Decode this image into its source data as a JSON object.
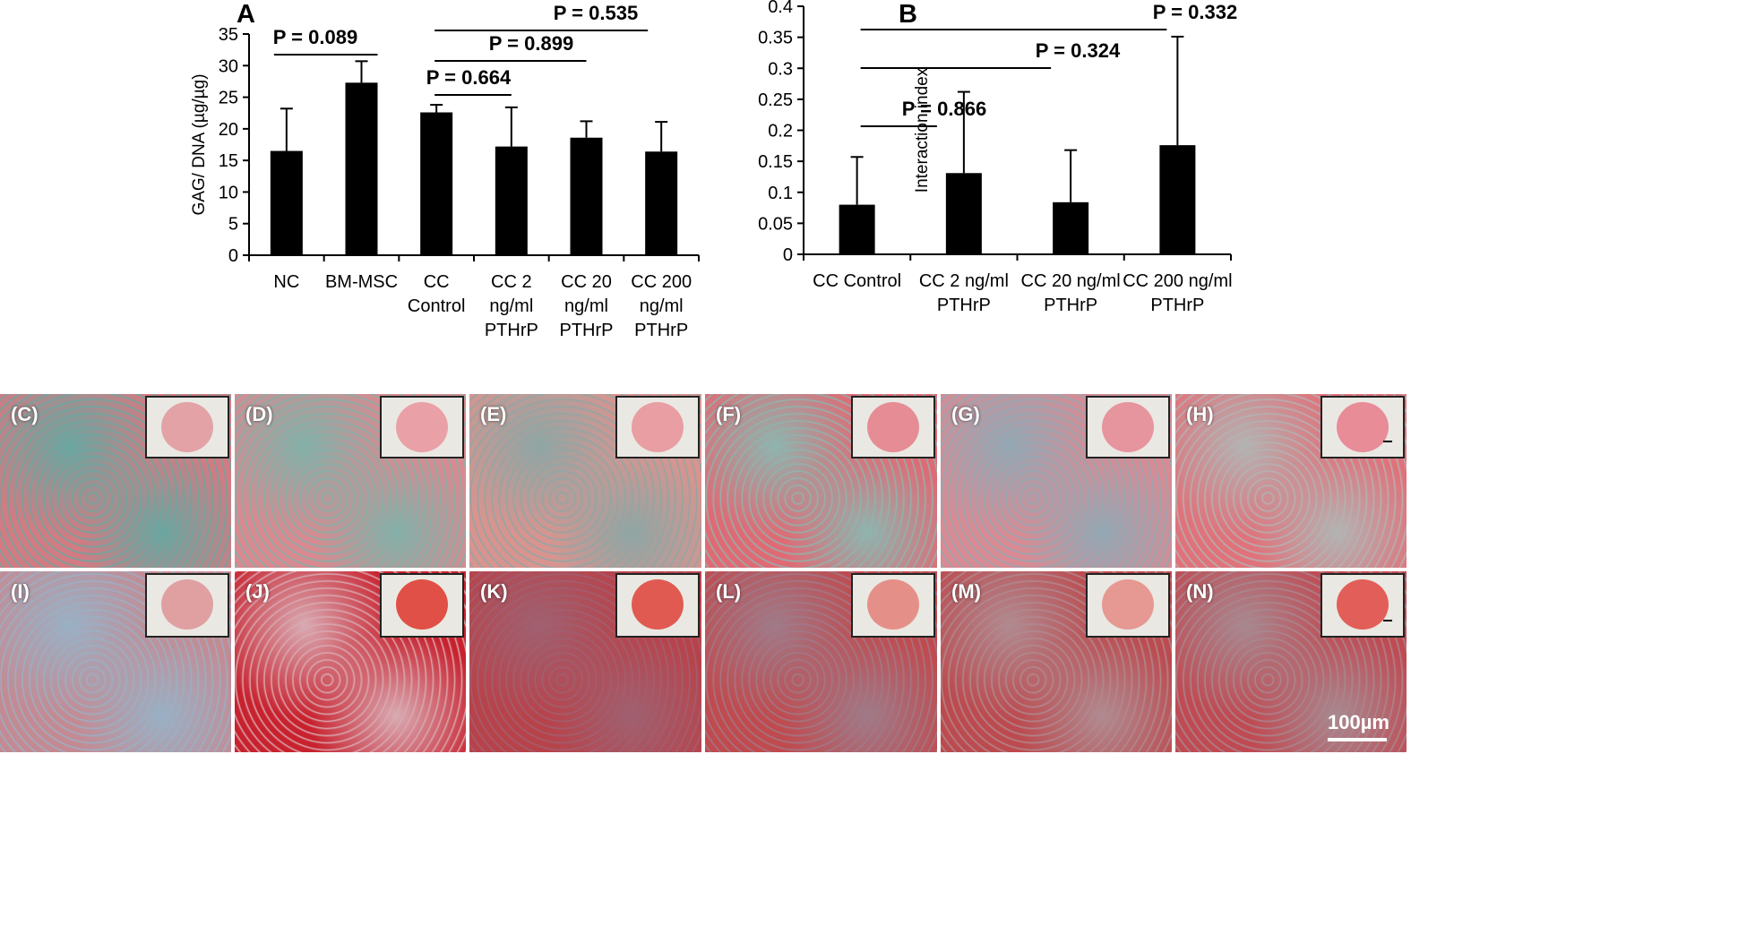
{
  "chart_data": [
    {
      "panel": "A",
      "type": "bar",
      "ylabel": "GAG/ DNA (µg/µg)",
      "ylim": [
        0,
        35
      ],
      "yticks": [
        "0",
        "5",
        "10",
        "15",
        "20",
        "25",
        "30",
        "35"
      ],
      "categories": [
        [
          "NC"
        ],
        [
          "BM-MSC"
        ],
        [
          "CC",
          "Control"
        ],
        [
          "CC 2",
          "ng/ml",
          "PTHrP"
        ],
        [
          "CC 20",
          "ng/ml",
          "PTHrP"
        ],
        [
          "CC 200",
          "ng/ml",
          "PTHrP"
        ]
      ],
      "values": [
        16.5,
        27.3,
        22.6,
        17.2,
        18.6,
        16.4
      ],
      "errors": [
        6.7,
        3.4,
        1.2,
        6.2,
        2.6,
        4.7
      ],
      "comparisons": [
        {
          "label": "P = 0.089",
          "from": 0,
          "to": 1
        },
        {
          "label": "P = 0.664",
          "from": 2,
          "to": 3
        },
        {
          "label": "P = 0.899",
          "from": 2,
          "to": 4
        },
        {
          "label": "P = 0.535",
          "from": 2,
          "to": 5
        }
      ]
    },
    {
      "panel": "B",
      "type": "bar",
      "ylabel": "Interaction index",
      "ylim": [
        0,
        0.4
      ],
      "yticks": [
        "0",
        "0.05",
        "0.1",
        "0.15",
        "0.2",
        "0.25",
        "0.3",
        "0.35",
        "0.4"
      ],
      "categories": [
        [
          "CC Control"
        ],
        [
          "CC 2 ng/ml",
          "PTHrP"
        ],
        [
          "CC 20 ng/ml",
          "PTHrP"
        ],
        [
          "CC 200 ng/ml",
          "PTHrP"
        ]
      ],
      "values": [
        0.08,
        0.131,
        0.084,
        0.176
      ],
      "errors": [
        0.077,
        0.131,
        0.084,
        0.175
      ],
      "comparisons": [
        {
          "label": "P = 0.866",
          "from": 0,
          "to": 1
        },
        {
          "label": "P = 0.324",
          "from": 0,
          "to": 2
        },
        {
          "label": "P = 0.332",
          "from": 0,
          "to": 3
        }
      ]
    }
  ],
  "images": {
    "columns": [
      "NC",
      "BM-MSC",
      "CC Control",
      "CC 2 ng/ml PTHrP",
      "CC 20 ng/ml PTHrP",
      "CC 200 ng/ml PTHrP"
    ],
    "row1_letters": [
      "(C)",
      "(D)",
      "(E)",
      "(F)",
      "(G)",
      "(H)"
    ],
    "row2_letters": [
      "(I)",
      "(J)",
      "(K)",
      "(L)",
      "(M)",
      "(N)"
    ],
    "scale_bar": "100µm"
  }
}
